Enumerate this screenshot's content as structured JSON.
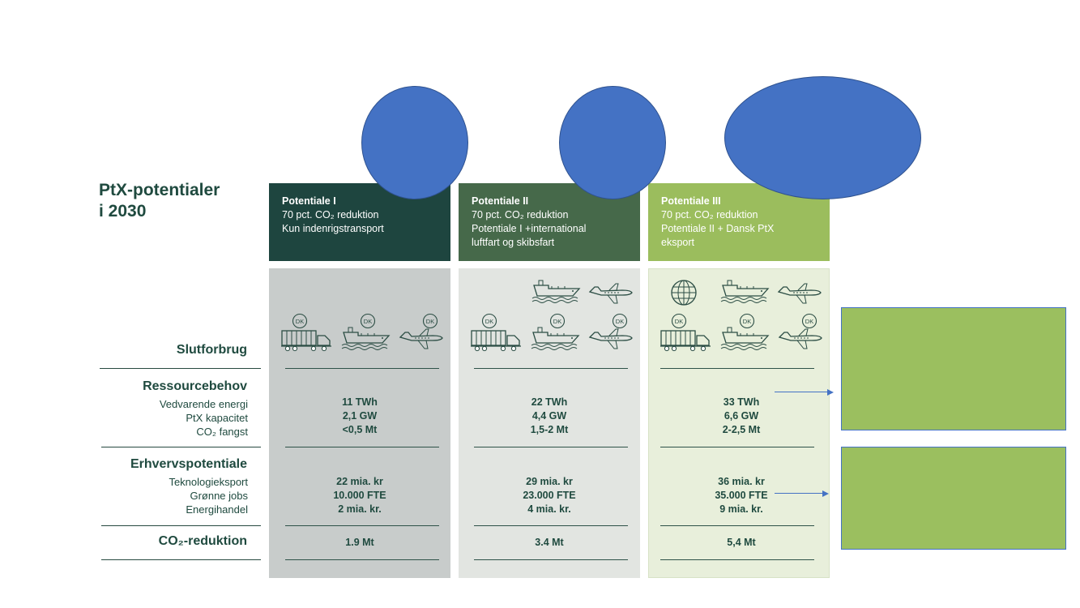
{
  "page": {
    "title_line1": "PtX-potentialer",
    "title_line2": "i 2030"
  },
  "columns": [
    {
      "name": "Potentiale I",
      "desc_lines": [
        "70 pct. CO₂ reduktion",
        "Kun indenrigstransport"
      ],
      "header_color": "#1e453f",
      "body_color": "#c8cccb",
      "ressource": [
        "11 TWh",
        "2,1 GW",
        "<0,5 Mt"
      ],
      "erhverv": [
        "22 mia. kr",
        "10.000 FTE",
        "2 mia. kr."
      ],
      "co2": "1.9 Mt"
    },
    {
      "name": "Potentiale II",
      "desc_lines": [
        "70 pct. CO₂ reduktion",
        "Potentiale I +international",
        "luftfart og skibsfart"
      ],
      "header_color": "#46694a",
      "body_color": "#e2e5e1",
      "ressource": [
        "22 TWh",
        "4,4 GW",
        "1,5-2 Mt"
      ],
      "erhverv": [
        "29 mia. kr",
        "23.000 FTE",
        "4 mia. kr."
      ],
      "co2": "3.4 Mt"
    },
    {
      "name": "Potentiale III",
      "desc_lines": [
        "70 pct. CO₂ reduktion",
        "Potentiale II + Dansk PtX",
        "eksport"
      ],
      "header_color": "#9bbd5d",
      "body_color": "#e8efdb",
      "ressource": [
        "33 TWh",
        "6,6 GW",
        "2-2,5 Mt"
      ],
      "erhverv": [
        "36 mia. kr",
        "35.000 FTE",
        "9 mia. kr."
      ],
      "co2": "5,4 Mt"
    }
  ],
  "rows": {
    "slutforbrug": "Slutforbrug",
    "ressourcebehov": {
      "label": "Ressourcebehov",
      "sub": [
        "Vedvarende energi",
        "PtX kapacitet",
        "CO₂ fangst"
      ]
    },
    "erhvervspotentiale": {
      "label": "Erhvervspotentiale",
      "sub": [
        "Teknologieksport",
        "Grønne jobs",
        "Energihandel"
      ]
    },
    "co2_reduktion": "CO₂-reduktion"
  },
  "icons": {
    "badge_text": "DK",
    "truck": "truck-icon",
    "ship": "ship-icon",
    "plane": "plane-icon",
    "globe": "globe-icon"
  },
  "annotation_colors": {
    "bubble": "#4472c4",
    "callout": "#9bbf5f"
  }
}
